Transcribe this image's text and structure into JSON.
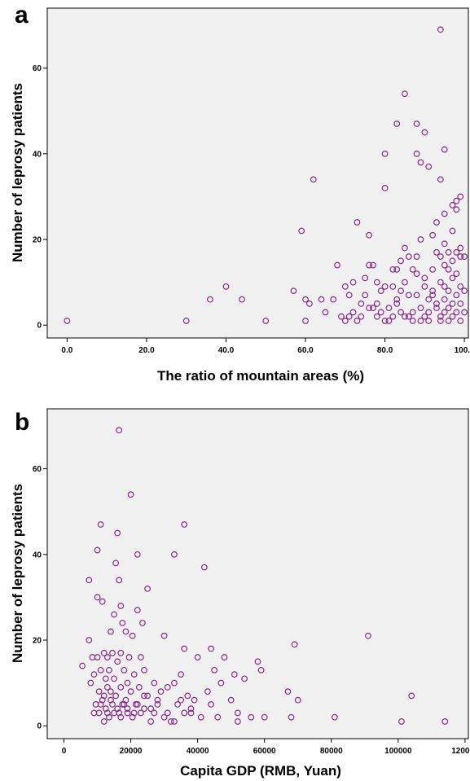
{
  "chart_data": [
    {
      "type": "scatter",
      "panel_label": "a",
      "xlabel": "The ratio of mountain areas (%)",
      "ylabel": "Number of leprosy patients",
      "xlim": [
        -5,
        101
      ],
      "ylim": [
        -3,
        74
      ],
      "xticks": [
        0,
        20,
        40,
        60,
        80,
        100
      ],
      "xtick_labels": [
        "0.0",
        "20.0",
        "40.0",
        "60.0",
        "80.0",
        "100.0"
      ],
      "yticks": [
        0,
        20,
        40,
        60
      ],
      "ytick_labels": [
        "0",
        "20",
        "40",
        "60"
      ],
      "marker_color": "#8b2a8b",
      "background_color": "#f0f0f0",
      "points": [
        [
          0,
          1
        ],
        [
          30,
          1
        ],
        [
          36,
          6
        ],
        [
          40,
          9
        ],
        [
          44,
          6
        ],
        [
          50,
          1
        ],
        [
          57,
          8
        ],
        [
          59,
          22
        ],
        [
          60,
          1
        ],
        [
          60,
          6
        ],
        [
          61,
          5
        ],
        [
          62,
          34
        ],
        [
          64,
          6
        ],
        [
          65,
          3
        ],
        [
          67,
          6
        ],
        [
          68,
          14
        ],
        [
          70,
          9
        ],
        [
          71,
          7
        ],
        [
          72,
          10
        ],
        [
          73,
          24
        ],
        [
          74,
          5
        ],
        [
          75,
          11
        ],
        [
          75,
          7
        ],
        [
          76,
          21
        ],
        [
          76,
          14
        ],
        [
          77,
          14
        ],
        [
          77,
          4
        ],
        [
          78,
          10
        ],
        [
          78,
          5
        ],
        [
          79,
          8
        ],
        [
          80,
          1
        ],
        [
          80,
          40
        ],
        [
          80,
          32
        ],
        [
          80,
          9
        ],
        [
          81,
          4
        ],
        [
          82,
          9
        ],
        [
          82,
          13
        ],
        [
          83,
          5
        ],
        [
          83,
          47
        ],
        [
          83,
          13
        ],
        [
          84,
          8
        ],
        [
          84,
          15
        ],
        [
          85,
          54
        ],
        [
          85,
          2
        ],
        [
          85,
          18
        ],
        [
          85,
          10
        ],
        [
          86,
          16
        ],
        [
          86,
          7
        ],
        [
          87,
          13
        ],
        [
          87,
          3
        ],
        [
          88,
          47
        ],
        [
          88,
          40
        ],
        [
          88,
          16
        ],
        [
          88,
          12
        ],
        [
          88,
          7
        ],
        [
          89,
          38
        ],
        [
          89,
          20
        ],
        [
          89,
          4
        ],
        [
          90,
          45
        ],
        [
          90,
          11
        ],
        [
          90,
          9
        ],
        [
          91,
          37
        ],
        [
          91,
          6
        ],
        [
          91,
          3
        ],
        [
          92,
          21
        ],
        [
          92,
          13
        ],
        [
          92,
          8
        ],
        [
          93,
          24
        ],
        [
          93,
          17
        ],
        [
          93,
          5
        ],
        [
          94,
          69
        ],
        [
          94,
          34
        ],
        [
          94,
          16
        ],
        [
          94,
          10
        ],
        [
          94,
          2
        ],
        [
          95,
          41
        ],
        [
          95,
          26
        ],
        [
          95,
          19
        ],
        [
          95,
          14
        ],
        [
          95,
          9
        ],
        [
          95,
          6
        ],
        [
          95,
          3
        ],
        [
          96,
          17
        ],
        [
          96,
          13
        ],
        [
          96,
          8
        ],
        [
          96,
          1
        ],
        [
          97,
          28
        ],
        [
          97,
          22
        ],
        [
          97,
          15
        ],
        [
          97,
          11
        ],
        [
          97,
          5
        ],
        [
          98,
          29
        ],
        [
          98,
          27
        ],
        [
          98,
          17
        ],
        [
          98,
          12
        ],
        [
          98,
          7
        ],
        [
          98,
          3
        ],
        [
          99,
          30
        ],
        [
          99,
          18
        ],
        [
          99,
          16
        ],
        [
          99,
          9
        ],
        [
          99,
          5
        ],
        [
          100,
          16
        ],
        [
          100,
          8
        ],
        [
          100,
          3
        ],
        [
          86,
          2
        ],
        [
          87,
          1
        ],
        [
          89,
          1
        ],
        [
          90,
          2
        ],
        [
          91,
          1
        ],
        [
          92,
          7
        ],
        [
          93,
          4
        ],
        [
          94,
          1
        ],
        [
          96,
          4
        ],
        [
          97,
          2
        ],
        [
          99,
          1
        ],
        [
          84,
          3
        ],
        [
          83,
          6
        ],
        [
          82,
          2
        ],
        [
          81,
          1
        ],
        [
          79,
          3
        ],
        [
          78,
          2
        ],
        [
          76,
          4
        ],
        [
          74,
          2
        ],
        [
          73,
          1
        ],
        [
          72,
          3
        ],
        [
          71,
          2
        ],
        [
          70,
          1
        ],
        [
          69,
          2
        ]
      ]
    },
    {
      "type": "scatter",
      "panel_label": "b",
      "xlabel": "Capita GDP (RMB, Yuan)",
      "ylabel": "Number of leprosy patients",
      "xlim": [
        -5000,
        121000
      ],
      "ylim": [
        -3,
        74
      ],
      "xticks": [
        0,
        20000,
        40000,
        60000,
        80000,
        100000,
        120000
      ],
      "xtick_labels": [
        "0",
        "20000",
        "40000",
        "60000",
        "80000",
        "100000",
        "120000"
      ],
      "yticks": [
        0,
        20,
        40,
        60
      ],
      "ytick_labels": [
        "0",
        "20",
        "40",
        "60"
      ],
      "marker_color": "#8b2a8b",
      "background_color": "#f0f0f0",
      "points": [
        [
          5500,
          14
        ],
        [
          7500,
          20
        ],
        [
          7500,
          34
        ],
        [
          8000,
          10
        ],
        [
          8500,
          16
        ],
        [
          9000,
          12
        ],
        [
          9500,
          5
        ],
        [
          10000,
          41
        ],
        [
          10000,
          30
        ],
        [
          10000,
          16
        ],
        [
          10500,
          8
        ],
        [
          10500,
          3
        ],
        [
          11000,
          47
        ],
        [
          11000,
          13
        ],
        [
          11500,
          29
        ],
        [
          11500,
          6
        ],
        [
          12000,
          17
        ],
        [
          12000,
          1
        ],
        [
          12500,
          11
        ],
        [
          12500,
          4
        ],
        [
          13000,
          16
        ],
        [
          13000,
          9
        ],
        [
          13500,
          13
        ],
        [
          13500,
          2
        ],
        [
          14000,
          22
        ],
        [
          14000,
          8
        ],
        [
          14500,
          17
        ],
        [
          14500,
          5
        ],
        [
          15000,
          26
        ],
        [
          15000,
          11
        ],
        [
          15500,
          38
        ],
        [
          15500,
          7
        ],
        [
          16000,
          45
        ],
        [
          16000,
          15
        ],
        [
          16500,
          69
        ],
        [
          16500,
          34
        ],
        [
          16500,
          3
        ],
        [
          17000,
          28
        ],
        [
          17000,
          17
        ],
        [
          17000,
          9
        ],
        [
          17500,
          24
        ],
        [
          17500,
          5
        ],
        [
          18000,
          13
        ],
        [
          18500,
          22
        ],
        [
          18500,
          6
        ],
        [
          19000,
          10
        ],
        [
          19000,
          3
        ],
        [
          19500,
          16
        ],
        [
          20000,
          54
        ],
        [
          20000,
          8
        ],
        [
          20500,
          21
        ],
        [
          20500,
          2
        ],
        [
          21000,
          12
        ],
        [
          21500,
          5
        ],
        [
          22000,
          40
        ],
        [
          22000,
          27
        ],
        [
          22500,
          9
        ],
        [
          23000,
          16
        ],
        [
          23500,
          24
        ],
        [
          24000,
          13
        ],
        [
          24000,
          4
        ],
        [
          25000,
          32
        ],
        [
          25000,
          7
        ],
        [
          26000,
          1
        ],
        [
          27000,
          10
        ],
        [
          28000,
          5
        ],
        [
          29000,
          8
        ],
        [
          30000,
          21
        ],
        [
          30000,
          2
        ],
        [
          31000,
          9
        ],
        [
          32000,
          1
        ],
        [
          33000,
          40
        ],
        [
          33000,
          10
        ],
        [
          34000,
          5
        ],
        [
          35000,
          12
        ],
        [
          36000,
          47
        ],
        [
          36000,
          18
        ],
        [
          36000,
          3
        ],
        [
          37000,
          7
        ],
        [
          38000,
          4
        ],
        [
          39000,
          6
        ],
        [
          40000,
          16
        ],
        [
          42000,
          37
        ],
        [
          43000,
          8
        ],
        [
          44000,
          18
        ],
        [
          45000,
          13
        ],
        [
          46000,
          2
        ],
        [
          47000,
          10
        ],
        [
          48000,
          16
        ],
        [
          50000,
          6
        ],
        [
          51000,
          12
        ],
        [
          52000,
          1
        ],
        [
          54000,
          11
        ],
        [
          56000,
          2
        ],
        [
          58000,
          15
        ],
        [
          59000,
          13
        ],
        [
          60000,
          2
        ],
        [
          67000,
          8
        ],
        [
          68000,
          2
        ],
        [
          69000,
          19
        ],
        [
          70000,
          6
        ],
        [
          81000,
          2
        ],
        [
          91000,
          21
        ],
        [
          101000,
          1
        ],
        [
          104000,
          7
        ],
        [
          114000,
          1
        ],
        [
          9000,
          3
        ],
        [
          11000,
          5
        ],
        [
          12000,
          7
        ],
        [
          13000,
          3
        ],
        [
          14000,
          6
        ],
        [
          15000,
          3
        ],
        [
          16000,
          4
        ],
        [
          17000,
          2
        ],
        [
          18000,
          5
        ],
        [
          19000,
          4
        ],
        [
          21000,
          3
        ],
        [
          22000,
          5
        ],
        [
          23000,
          3
        ],
        [
          24000,
          7
        ],
        [
          26000,
          4
        ],
        [
          27000,
          3
        ],
        [
          28000,
          6
        ],
        [
          31000,
          3
        ],
        [
          33000,
          1
        ],
        [
          35000,
          6
        ],
        [
          38000,
          3
        ],
        [
          41000,
          2
        ],
        [
          44000,
          5
        ],
        [
          52000,
          3
        ]
      ]
    }
  ]
}
